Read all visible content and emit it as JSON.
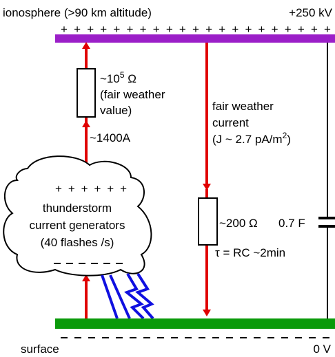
{
  "top": {
    "label": "ionosphere (>90 km altitude)",
    "voltage": "+250 kV",
    "charges": "+ + + + + + + + + + + + + + + + + + + + +"
  },
  "left_branch": {
    "resistance_base": "~10",
    "resistance_exp": "5",
    "resistance_unit": " Ω",
    "note_line1": "(fair weather",
    "note_line2": "value)",
    "current": "~1400A"
  },
  "middle_branch": {
    "line1": "fair weather",
    "line2": "current",
    "line3_start": "(J ~ 2.7 pA/m",
    "line3_exp": "2",
    "line3_end": ")",
    "resistance": "~200 Ω",
    "time_constant": "τ = RC ~2min"
  },
  "right_branch": {
    "capacitance": "0.7 F"
  },
  "cloud": {
    "charges": "+ + + + + +",
    "line1": "thunderstorm",
    "line2": "current generators",
    "line3": "(40 flashes /s)"
  },
  "bottom": {
    "label": "surface",
    "voltage": "0 V"
  }
}
